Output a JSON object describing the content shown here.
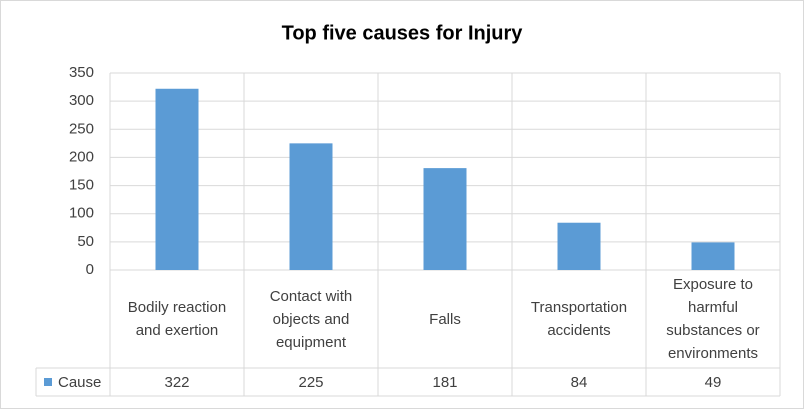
{
  "chart_data": {
    "type": "bar",
    "title": "Top five causes for Injury",
    "categories": [
      "Bodily reaction and exertion",
      "Contact with objects and equipment",
      "Falls",
      "Transportation accidents",
      "Exposure to harmful substances or environments"
    ],
    "series": [
      {
        "name": "Cause",
        "color": "#5b9bd5",
        "values": [
          322,
          225,
          181,
          84,
          49
        ]
      }
    ],
    "ylim": [
      0,
      350
    ],
    "yticks": [
      0,
      50,
      100,
      150,
      200,
      250,
      300,
      350
    ],
    "grid": true,
    "data_table": true
  }
}
